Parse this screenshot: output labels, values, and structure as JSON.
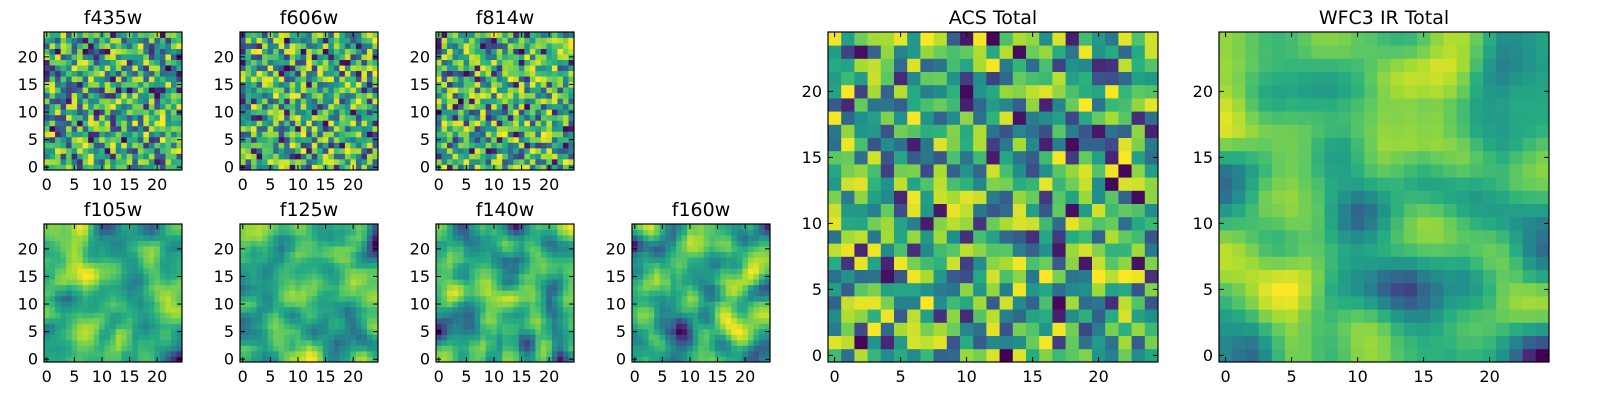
{
  "chart_data": [
    {
      "type": "heatmap",
      "title": "f435w",
      "grid_size": 25,
      "seed": 11,
      "smooth": 0,
      "xlim": [
        -0.5,
        24.5
      ],
      "ylim": [
        -0.5,
        24.5
      ],
      "xticks": [
        0,
        5,
        10,
        15,
        20
      ],
      "yticks": [
        0,
        5,
        10,
        15,
        20
      ],
      "colormap": "viridis",
      "vmin": 0,
      "vmax": 1
    },
    {
      "type": "heatmap",
      "title": "f606w",
      "grid_size": 25,
      "seed": 23,
      "smooth": 0,
      "xlim": [
        -0.5,
        24.5
      ],
      "ylim": [
        -0.5,
        24.5
      ],
      "xticks": [
        0,
        5,
        10,
        15,
        20
      ],
      "yticks": [
        0,
        5,
        10,
        15,
        20
      ],
      "colormap": "viridis",
      "vmin": 0,
      "vmax": 1
    },
    {
      "type": "heatmap",
      "title": "f814w",
      "grid_size": 25,
      "seed": 37,
      "smooth": 0,
      "xlim": [
        -0.5,
        24.5
      ],
      "ylim": [
        -0.5,
        24.5
      ],
      "xticks": [
        0,
        5,
        10,
        15,
        20
      ],
      "yticks": [
        0,
        5,
        10,
        15,
        20
      ],
      "colormap": "viridis",
      "vmin": 0,
      "vmax": 1
    },
    {
      "type": "heatmap",
      "title": "f105w",
      "grid_size": 25,
      "seed": 41,
      "smooth": 2,
      "xlim": [
        -0.5,
        24.5
      ],
      "ylim": [
        -0.5,
        24.5
      ],
      "xticks": [
        0,
        5,
        10,
        15,
        20
      ],
      "yticks": [
        0,
        5,
        10,
        15,
        20
      ],
      "colormap": "viridis",
      "vmin": 0,
      "vmax": 1
    },
    {
      "type": "heatmap",
      "title": "f125w",
      "grid_size": 25,
      "seed": 53,
      "smooth": 2,
      "xlim": [
        -0.5,
        24.5
      ],
      "ylim": [
        -0.5,
        24.5
      ],
      "xticks": [
        0,
        5,
        10,
        15,
        20
      ],
      "yticks": [
        0,
        5,
        10,
        15,
        20
      ],
      "colormap": "viridis",
      "vmin": 0,
      "vmax": 1
    },
    {
      "type": "heatmap",
      "title": "f140w",
      "grid_size": 25,
      "seed": 67,
      "smooth": 2,
      "xlim": [
        -0.5,
        24.5
      ],
      "ylim": [
        -0.5,
        24.5
      ],
      "xticks": [
        0,
        5,
        10,
        15,
        20
      ],
      "yticks": [
        0,
        5,
        10,
        15,
        20
      ],
      "colormap": "viridis",
      "vmin": 0,
      "vmax": 1
    },
    {
      "type": "heatmap",
      "title": "f160w",
      "grid_size": 25,
      "seed": 79,
      "smooth": 2,
      "xlim": [
        -0.5,
        24.5
      ],
      "ylim": [
        -0.5,
        24.5
      ],
      "xticks": [
        0,
        5,
        10,
        15,
        20
      ],
      "yticks": [
        0,
        5,
        10,
        15,
        20
      ],
      "colormap": "viridis",
      "vmin": 0,
      "vmax": 1
    },
    {
      "type": "heatmap",
      "title": "ACS Total",
      "grid_size": 25,
      "seed": 97,
      "smooth": 0,
      "xlim": [
        -0.5,
        24.5
      ],
      "ylim": [
        -0.5,
        24.5
      ],
      "xticks": [
        0,
        5,
        10,
        15,
        20
      ],
      "yticks": [
        0,
        5,
        10,
        15,
        20
      ],
      "colormap": "viridis",
      "vmin": 0,
      "vmax": 1
    },
    {
      "type": "heatmap",
      "title": "WFC3 IR Total",
      "grid_size": 25,
      "seed": 131,
      "smooth": 3,
      "xlim": [
        -0.5,
        24.5
      ],
      "ylim": [
        -0.5,
        24.5
      ],
      "xticks": [
        0,
        5,
        10,
        15,
        20
      ],
      "yticks": [
        0,
        5,
        10,
        15,
        20
      ],
      "colormap": "viridis",
      "vmin": 0,
      "vmax": 1
    }
  ]
}
